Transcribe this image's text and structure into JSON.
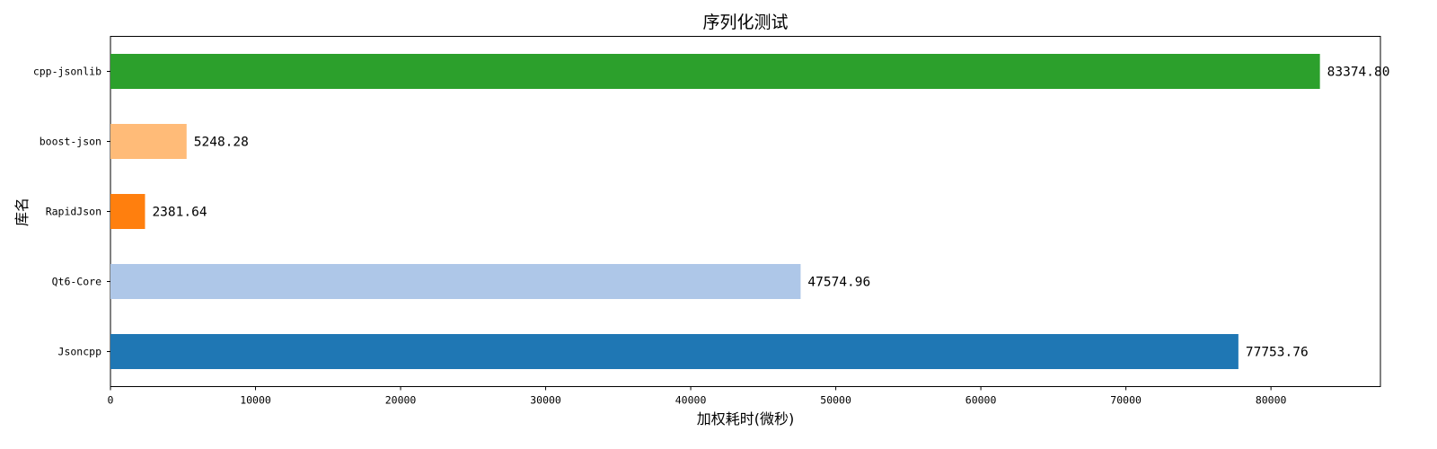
{
  "chart_data": {
    "type": "bar",
    "orientation": "horizontal",
    "title": "序列化测试",
    "xlabel": "加权耗时(微秒)",
    "ylabel": "库名",
    "categories": [
      "Jsoncpp",
      "Qt6-Core",
      "RapidJson",
      "boost-json",
      "cpp-jsonlib"
    ],
    "values": [
      77753.76,
      47574.96,
      2381.64,
      5248.28,
      83374.8
    ],
    "value_labels": [
      "77753.76",
      "47574.96",
      "2381.64",
      "5248.28",
      "83374.80"
    ],
    "colors": [
      "#1f77b4",
      "#aec7e8",
      "#ff7f0e",
      "#ffbb78",
      "#2ca02c"
    ],
    "xlim": [
      0,
      87544.54
    ],
    "xticks": [
      0,
      10000,
      20000,
      30000,
      40000,
      50000,
      60000,
      70000,
      80000
    ],
    "xtick_labels": [
      "0",
      "10000",
      "20000",
      "30000",
      "40000",
      "50000",
      "60000",
      "70000",
      "80000"
    ],
    "grid": false,
    "legend": "none"
  }
}
